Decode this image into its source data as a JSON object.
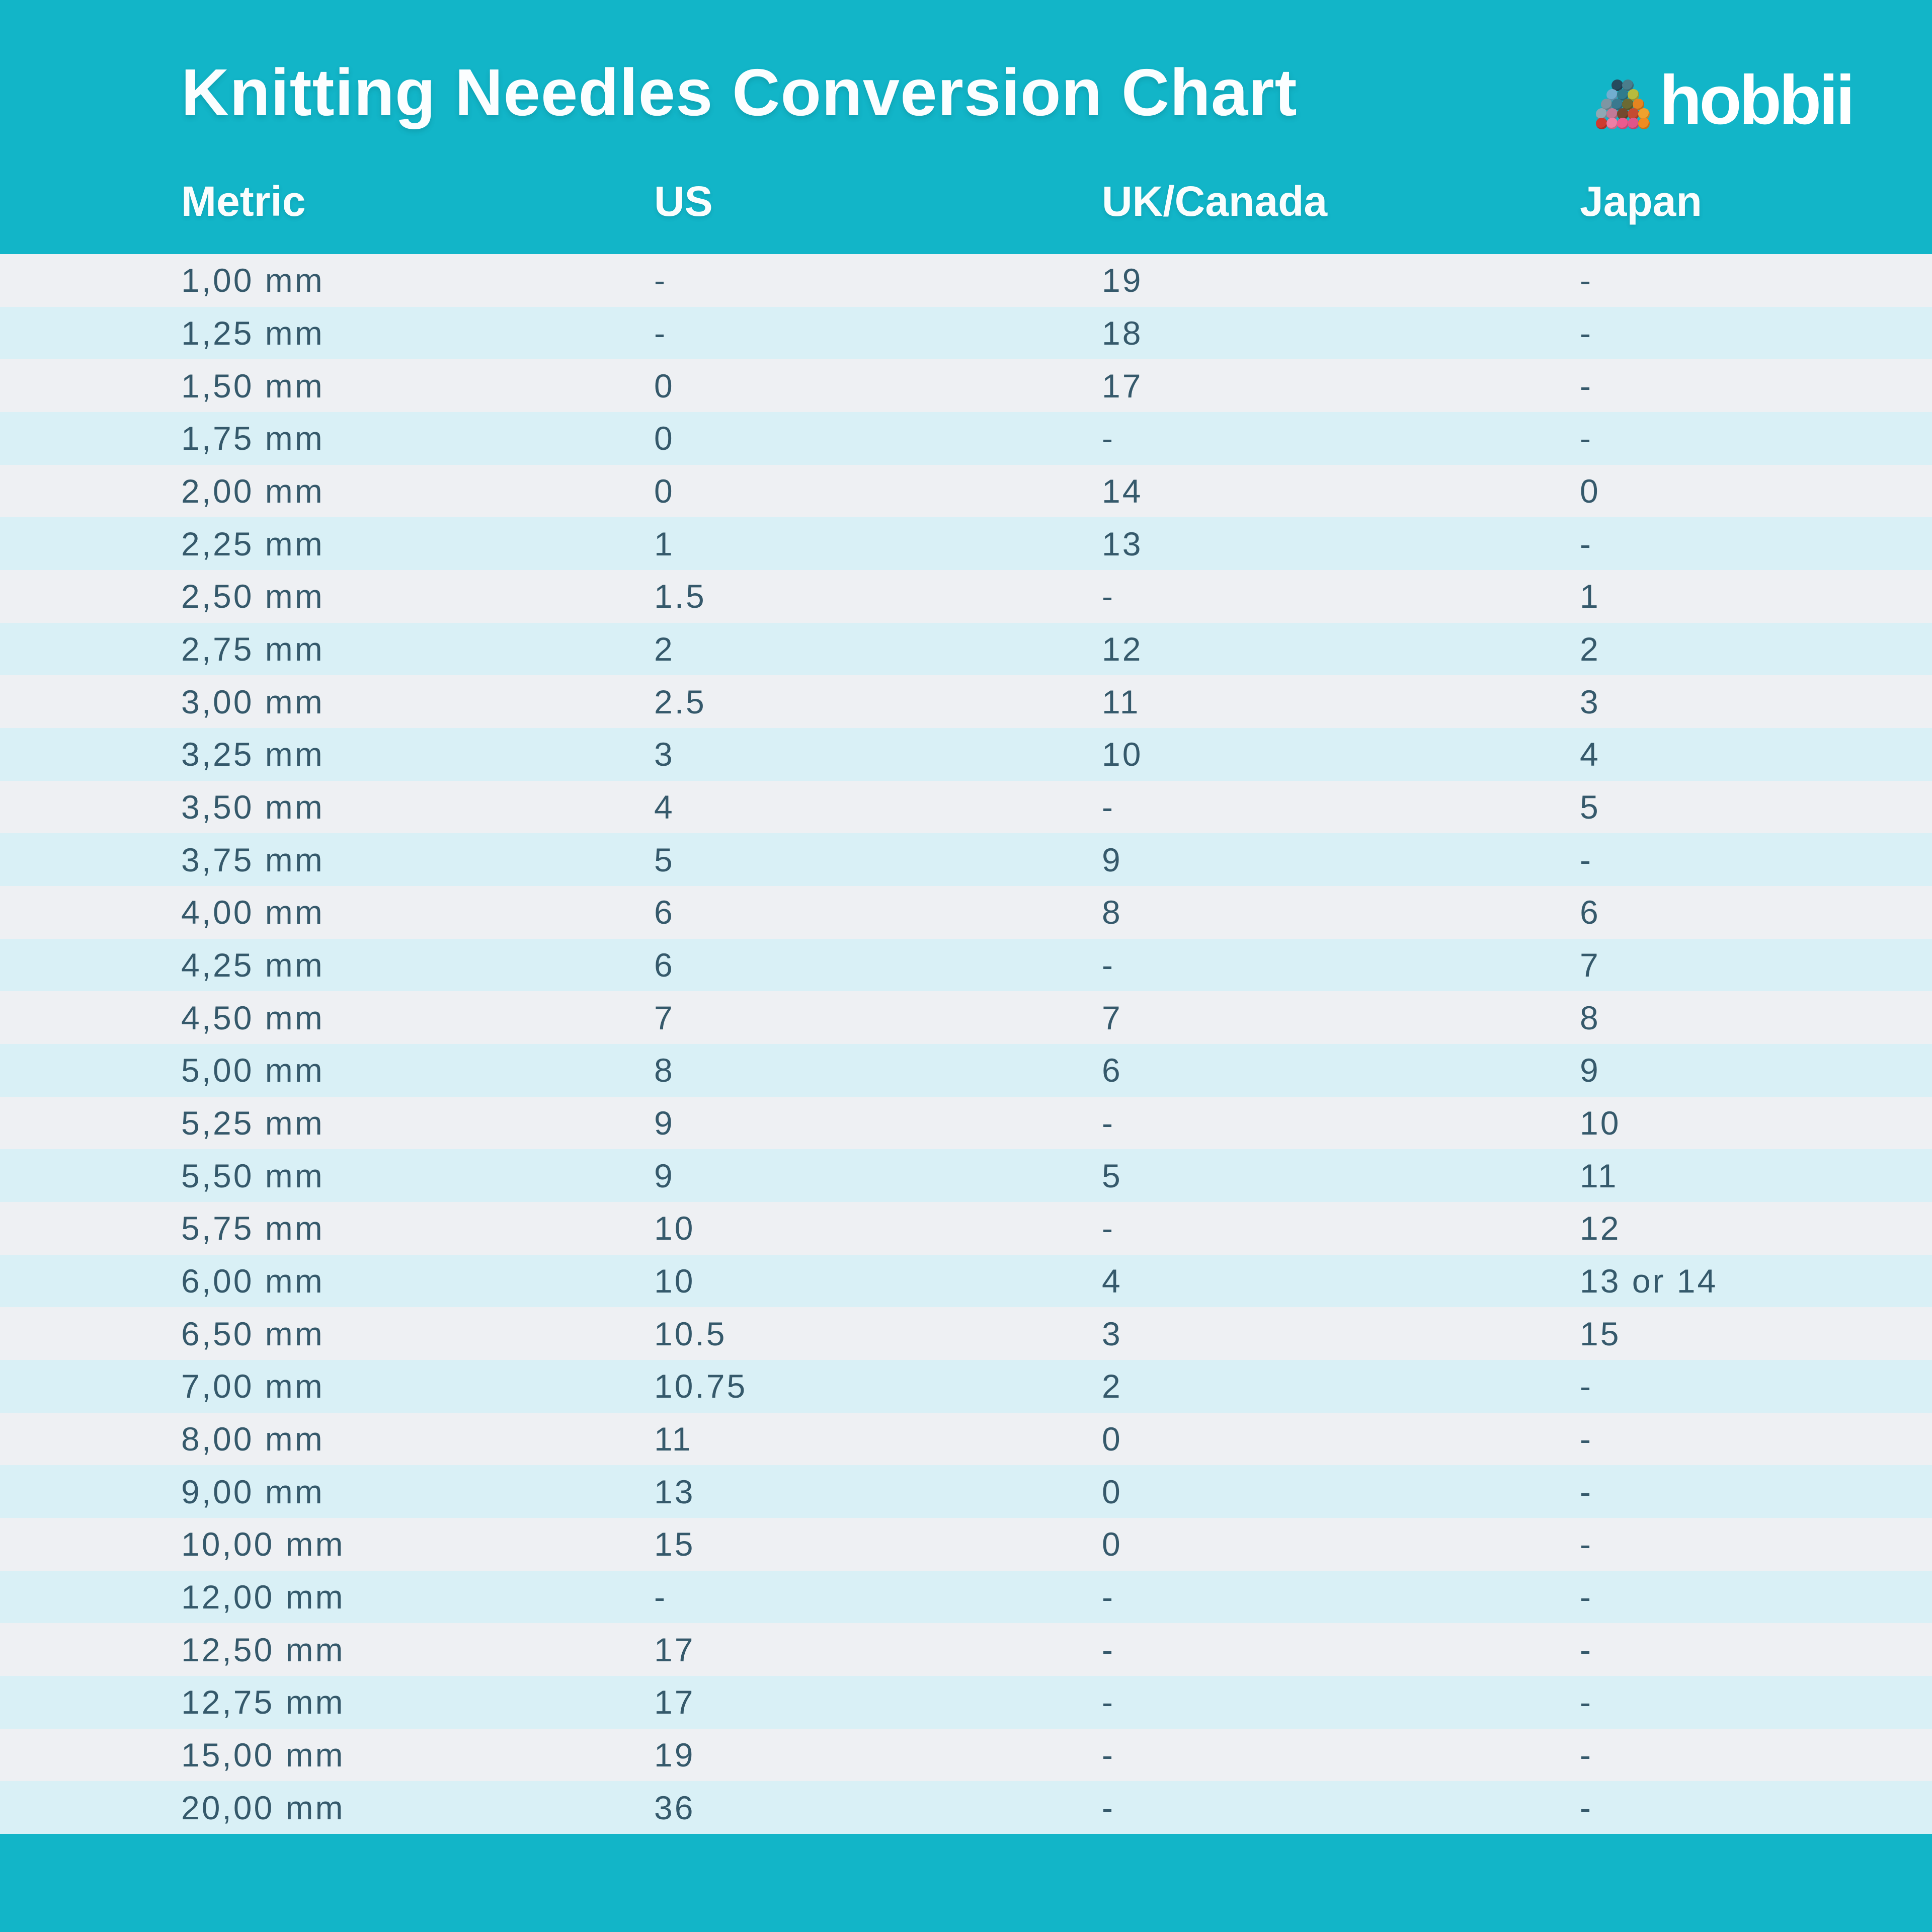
{
  "header": {
    "title": "Knitting Needles Conversion Chart",
    "logo_text": "hobbii"
  },
  "chart_data": {
    "type": "table",
    "title": "Knitting Needles Conversion Chart",
    "columns": [
      "Metric",
      "US",
      "UK/Canada",
      "Japan"
    ],
    "rows": [
      [
        "1,00 mm",
        "-",
        "19",
        "-"
      ],
      [
        "1,25 mm",
        "-",
        "18",
        "-"
      ],
      [
        "1,50 mm",
        "0",
        "17",
        "-"
      ],
      [
        "1,75 mm",
        "0",
        "-",
        "-"
      ],
      [
        "2,00 mm",
        "0",
        "14",
        "0"
      ],
      [
        "2,25 mm",
        "1",
        "13",
        "-"
      ],
      [
        "2,50 mm",
        "1.5",
        "-",
        "1"
      ],
      [
        "2,75 mm",
        "2",
        "12",
        "2"
      ],
      [
        "3,00 mm",
        "2.5",
        "11",
        "3"
      ],
      [
        "3,25 mm",
        "3",
        "10",
        "4"
      ],
      [
        "3,50 mm",
        "4",
        "-",
        "5"
      ],
      [
        "3,75 mm",
        "5",
        "9",
        "-"
      ],
      [
        "4,00 mm",
        "6",
        "8",
        "6"
      ],
      [
        "4,25 mm",
        "6",
        "-",
        "7"
      ],
      [
        "4,50 mm",
        "7",
        "7",
        "8"
      ],
      [
        "5,00 mm",
        "8",
        "6",
        "9"
      ],
      [
        "5,25 mm",
        "9",
        "-",
        "10"
      ],
      [
        "5,50 mm",
        "9",
        "5",
        "11"
      ],
      [
        "5,75 mm",
        "10",
        "-",
        "12"
      ],
      [
        "6,00 mm",
        "10",
        "4",
        "13 or 14"
      ],
      [
        "6,50 mm",
        "10.5",
        "3",
        "15"
      ],
      [
        "7,00 mm",
        "10.75",
        "2",
        "-"
      ],
      [
        "8,00 mm",
        "11",
        "0",
        "-"
      ],
      [
        "9,00 mm",
        "13",
        "0",
        "-"
      ],
      [
        "10,00 mm",
        "15",
        "0",
        "-"
      ],
      [
        "12,00 mm",
        "-",
        "-",
        "-"
      ],
      [
        "12,50 mm",
        "17",
        "-",
        "-"
      ],
      [
        "12,75 mm",
        "17",
        "-",
        "-"
      ],
      [
        "15,00 mm",
        "19",
        "-",
        "-"
      ],
      [
        "20,00 mm",
        "36",
        "-",
        "-"
      ]
    ],
    "layout": {
      "row_striping": true,
      "header_position": "top"
    }
  },
  "colors": {
    "brand_teal": "#12b5c8",
    "row_gray": "#eef0f3",
    "row_cyan": "#d9f0f6",
    "cell_text": "#35596b",
    "header_text": "#ffffff"
  },
  "logo_yarn_rows": [
    [
      "#264a5e",
      "#4a7d8c"
    ],
    [
      "#72aed0",
      "#2f7b8c",
      "#b7bb3d"
    ],
    [
      "#7e96a3",
      "#39798f",
      "#6b6a33",
      "#e58420"
    ],
    [
      "#8fa9b5",
      "#c27a97",
      "#74492e",
      "#c44b32",
      "#efa22d"
    ],
    [
      "#cf3a2f",
      "#ee7fa5",
      "#ec5a8e",
      "#e05589",
      "#ef8c1f"
    ]
  ]
}
